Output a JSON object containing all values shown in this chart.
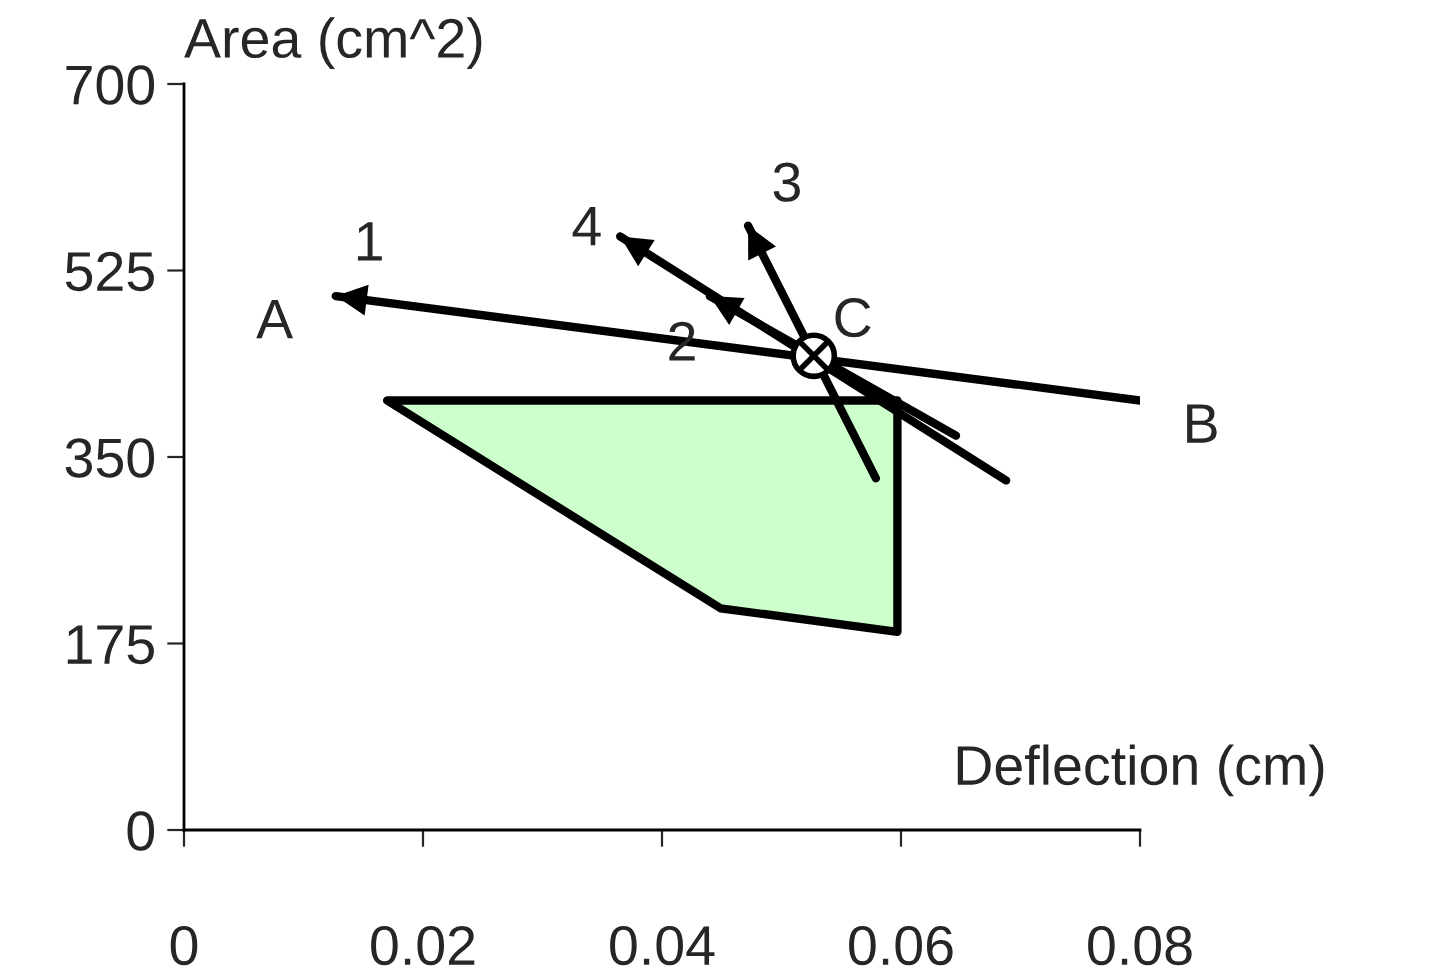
{
  "chart_data": {
    "type": "line",
    "xlabel": "Deflection (cm)",
    "ylabel": "Area (cm^2)",
    "xlim": [
      0,
      0.08
    ],
    "xticks": [
      0,
      0.02,
      0.04,
      0.06,
      0.08
    ],
    "ylim": [
      0,
      700
    ],
    "yticks": [
      0,
      175,
      350,
      525,
      700
    ],
    "grid": false,
    "legend": false,
    "series": [
      {
        "type": "area",
        "color": "#ccffcc",
        "x": [
          0.017,
          0.0597,
          0.0597,
          0.0449,
          0.017
        ],
        "values": [
          403,
          403,
          186,
          208,
          403
        ]
      },
      {
        "color": "#000000",
        "x": [
          0.0127,
          0.08
        ],
        "values": [
          501,
          403
        ]
      },
      {
        "color": "#000000",
        "x": [
          0.0365,
          0.0688
        ],
        "values": [
          557,
          328
        ]
      },
      {
        "color": "#000000",
        "x": [
          0.044,
          0.0646
        ],
        "values": [
          501,
          370
        ]
      },
      {
        "color": "#000000",
        "x": [
          0.0472,
          0.0579
        ],
        "values": [
          567,
          330
        ]
      },
      {
        "type": "scatter",
        "color": "#000000",
        "marker": "circle",
        "x": [
          0.0527
        ],
        "values": [
          445
        ]
      }
    ],
    "annotations": [
      {
        "text": "A",
        "x": 0.0127,
        "y": 501
      },
      {
        "text": "1",
        "x": 0.0127,
        "y": 501
      },
      {
        "text": "4",
        "x": 0.0365,
        "y": 557
      },
      {
        "text": "2",
        "x": 0.044,
        "y": 501
      },
      {
        "text": "3",
        "x": 0.0472,
        "y": 567
      },
      {
        "text": "C",
        "x": 0.0527,
        "y": 445
      },
      {
        "text": "B",
        "x": 0.08,
        "y": 403
      }
    ]
  }
}
